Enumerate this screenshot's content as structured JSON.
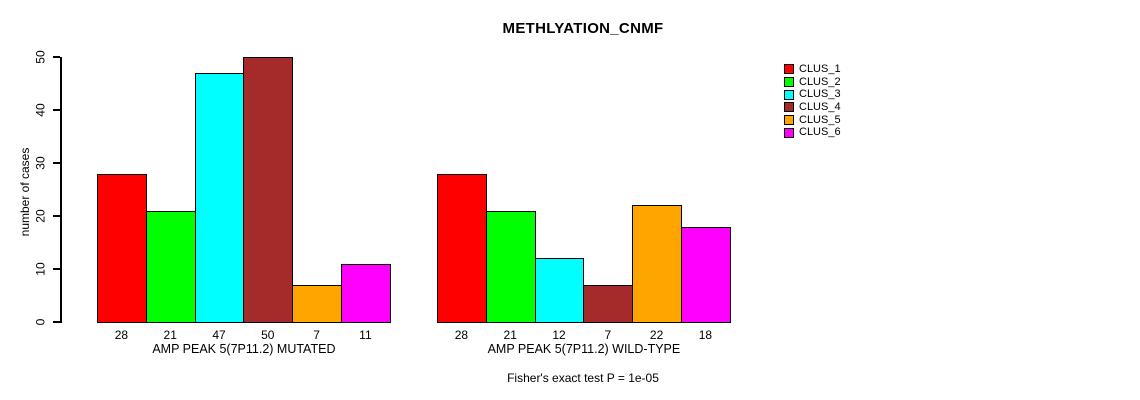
{
  "title": "METHLYATION_CNMF",
  "footer": "Fisher's exact test P = 1e-05",
  "chart_data": {
    "type": "bar",
    "title": "METHLYATION_CNMF",
    "xlabel": "",
    "ylabel": "number of cases",
    "ylim": [
      0,
      50
    ],
    "yticks": [
      0,
      10,
      20,
      30,
      40,
      50
    ],
    "grid": false,
    "legend_position": "right-outside-top",
    "series": [
      {
        "name": "CLUS_1",
        "color": "#FF0000"
      },
      {
        "name": "CLUS_2",
        "color": "#00FF00"
      },
      {
        "name": "CLUS_3",
        "color": "#00FFFF"
      },
      {
        "name": "CLUS_4",
        "color": "#A52A2A"
      },
      {
        "name": "CLUS_5",
        "color": "#FFA500"
      },
      {
        "name": "CLUS_6",
        "color": "#FF00FF"
      }
    ],
    "groups": [
      {
        "label": "AMP PEAK 5(7P11.2) MUTATED",
        "values": [
          28,
          21,
          47,
          50,
          7,
          11
        ]
      },
      {
        "label": "AMP PEAK 5(7P11.2) WILD-TYPE",
        "values": [
          28,
          21,
          12,
          7,
          22,
          18
        ]
      }
    ],
    "bar_value_labels": [
      [
        "28",
        "21",
        "47",
        "50",
        "7",
        "11"
      ],
      [
        "28",
        "21",
        "12",
        "7",
        "22",
        "18"
      ]
    ],
    "annotation": "Fisher's exact test P = 1e-05"
  }
}
